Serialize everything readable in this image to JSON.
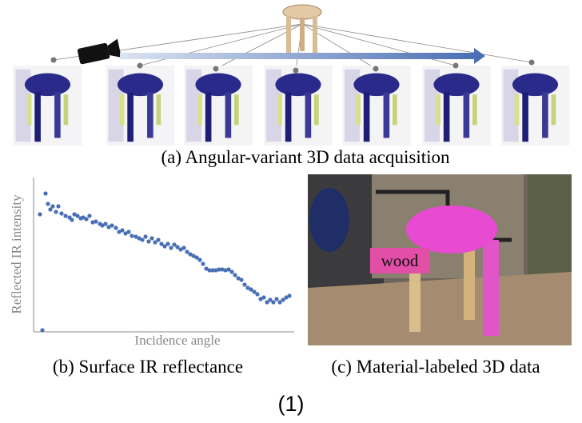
{
  "figure": {
    "caption_a": "(a) Angular-variant 3D data acquisition",
    "caption_b": "(b) Surface IR reflectance",
    "caption_c": "(c) Material-labeled 3D data",
    "material_label": "wood",
    "number": "(1)"
  },
  "chart_data": {
    "type": "scatter",
    "x_label": "Incidence angle",
    "y_label": "Reflected IR intensity",
    "color": "#4a6fb5",
    "xlim": [
      0,
      326
    ],
    "ylim": [
      0,
      193
    ],
    "x": [
      8,
      15,
      18,
      21,
      24,
      28,
      31,
      35,
      40,
      45,
      48,
      51,
      55,
      59,
      62,
      66,
      70,
      74,
      78,
      83,
      86,
      90,
      94,
      98,
      103,
      107,
      111,
      115,
      119,
      123,
      128,
      132,
      136,
      140,
      144,
      148,
      152,
      156,
      160,
      164,
      168,
      172,
      176,
      180,
      184,
      188,
      192,
      196,
      200,
      204,
      208,
      212,
      216,
      220,
      224,
      228,
      232,
      236,
      240,
      244,
      248,
      252,
      256,
      260,
      264,
      268,
      272,
      276,
      280,
      284,
      288,
      292,
      296,
      300,
      304,
      308,
      312,
      316,
      320,
      11
    ],
    "values": [
      147,
      173,
      160,
      153,
      157,
      150,
      157,
      148,
      145,
      143,
      140,
      147,
      145,
      142,
      143,
      141,
      145,
      137,
      138,
      135,
      133,
      135,
      131,
      133,
      130,
      125,
      127,
      123,
      125,
      120,
      119,
      117,
      115,
      119,
      113,
      117,
      112,
      115,
      110,
      107,
      110,
      105,
      109,
      106,
      103,
      105,
      100,
      97,
      95,
      93,
      90,
      85,
      79,
      77,
      77,
      77,
      78,
      78,
      77,
      78,
      75,
      71,
      67,
      65,
      59,
      55,
      53,
      50,
      47,
      41,
      43,
      37,
      40,
      37,
      41,
      37,
      40,
      43,
      45,
      2
    ]
  }
}
